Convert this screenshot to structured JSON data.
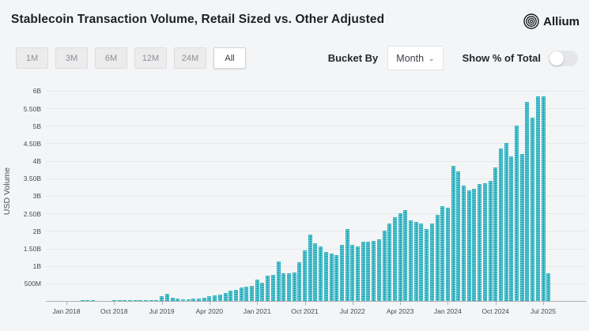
{
  "header": {
    "title": "Stablecoin Transaction Volume, Retail Sized vs. Other Adjusted",
    "brand": "Allium"
  },
  "controls": {
    "range_buttons": [
      {
        "label": "1M",
        "selected": false
      },
      {
        "label": "3M",
        "selected": false
      },
      {
        "label": "6M",
        "selected": false
      },
      {
        "label": "12M",
        "selected": false
      },
      {
        "label": "24M",
        "selected": false
      },
      {
        "label": "All",
        "selected": true
      }
    ],
    "bucket_by_label": "Bucket By",
    "bucket_value": "Month",
    "bucket_chevron": "⌄",
    "toggle_label": "Show % of Total",
    "toggle_on": false
  },
  "chart_data": {
    "type": "bar",
    "title": "Stablecoin Transaction Volume, Retail Sized vs. Other Adjusted",
    "xlabel": "",
    "ylabel": "USD Volume",
    "bucket": "Month",
    "bar_color": "#17a8b8",
    "grid": true,
    "legend": "none",
    "ylim_billions": [
      0,
      6.25
    ],
    "y_ticks": [
      {
        "label": "6B",
        "value_b": 6.0
      },
      {
        "label": "5.50B",
        "value_b": 5.5
      },
      {
        "label": "5B",
        "value_b": 5.0
      },
      {
        "label": "4.50B",
        "value_b": 4.5
      },
      {
        "label": "4B",
        "value_b": 4.0
      },
      {
        "label": "3.50B",
        "value_b": 3.5
      },
      {
        "label": "3B",
        "value_b": 3.0
      },
      {
        "label": "2.50B",
        "value_b": 2.5
      },
      {
        "label": "2B",
        "value_b": 2.0
      },
      {
        "label": "1.50B",
        "value_b": 1.5
      },
      {
        "label": "1B",
        "value_b": 1.0
      },
      {
        "label": "500M",
        "value_b": 0.5
      }
    ],
    "x_start_month": "Jan 2018",
    "x_end_month": "Aug 2025",
    "x_tick_labels": [
      "Jan 2018",
      "Oct 2018",
      "Jul 2019",
      "Apr 2020",
      "Jan 2021",
      "Oct 2021",
      "Jul 2022",
      "Apr 2023",
      "Jan 2024",
      "Oct 2024",
      "Jul 2025"
    ],
    "x_tick_month_indices": [
      0,
      9,
      18,
      27,
      36,
      45,
      54,
      63,
      72,
      81,
      90
    ],
    "series": [
      {
        "name": "USD Volume",
        "unit": "million USD per month",
        "values_million_usd": [
          8,
          10,
          12,
          15,
          18,
          15,
          12,
          10,
          12,
          14,
          16,
          15,
          15,
          18,
          22,
          25,
          28,
          30,
          135,
          210,
          90,
          60,
          55,
          55,
          60,
          70,
          100,
          130,
          150,
          190,
          235,
          285,
          325,
          380,
          400,
          440,
          620,
          520,
          720,
          750,
          1120,
          790,
          780,
          820,
          1100,
          1450,
          1900,
          1650,
          1550,
          1400,
          1350,
          1300,
          1600,
          2050,
          1600,
          1550,
          1700,
          1700,
          1720,
          1750,
          2000,
          2200,
          2400,
          2500,
          2600,
          2300,
          2250,
          2200,
          2050,
          2200,
          2450,
          2700,
          2650,
          3850,
          3700,
          3300,
          3150,
          3200,
          3330,
          3360,
          3420,
          3820,
          4360,
          4520,
          4120,
          5000,
          4200,
          5680,
          5230,
          5850,
          5850,
          780
        ]
      }
    ]
  }
}
